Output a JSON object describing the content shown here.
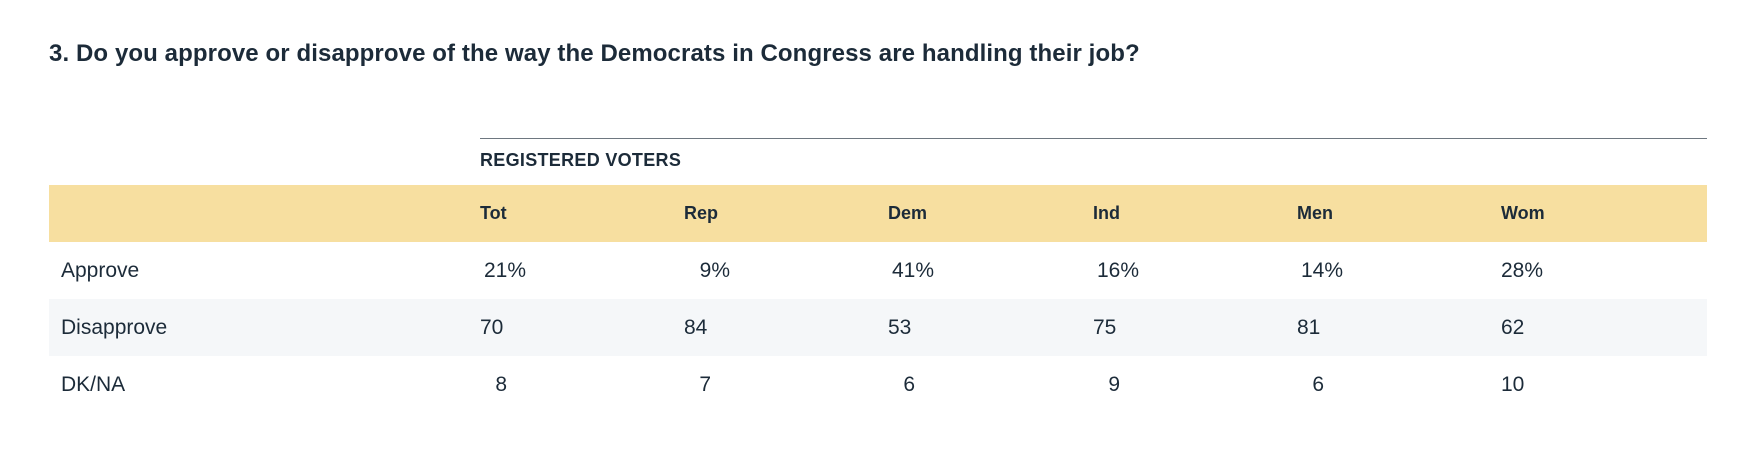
{
  "question": "3. Do you approve or disapprove of the way the Democrats in Congress are handling their job?",
  "group_label": "REGISTERED VOTERS",
  "columns": [
    "Tot",
    "Rep",
    "Dem",
    "Ind",
    "Men",
    "Wom"
  ],
  "rows": [
    {
      "label": "Approve",
      "values": [
        "21%",
        "9%",
        "41%",
        "16%",
        "14%",
        "28%"
      ]
    },
    {
      "label": "Disapprove",
      "values": [
        "70",
        "84",
        "53",
        "75",
        "81",
        "62"
      ]
    },
    {
      "label": "DK/NA",
      "values": [
        "8",
        "7",
        "6",
        "9",
        "6",
        "10"
      ]
    }
  ],
  "colors": {
    "header_band": "#f7dfa0",
    "alt_row": "#f5f7f9",
    "text": "#1c2b39"
  }
}
